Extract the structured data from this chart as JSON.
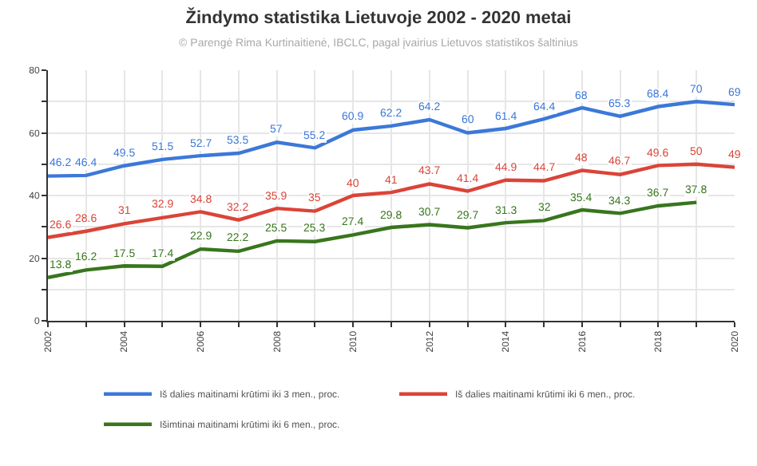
{
  "chart_data": {
    "type": "line",
    "title": "Žindymo statistika Lietuvoje 2002 - 2020 metai",
    "subtitle": "© Parengė Rima Kurtinaitienė, IBCLC, pagal įvairius Lietuvos statistikos šaltinius",
    "x": [
      2002,
      2003,
      2004,
      2005,
      2006,
      2007,
      2008,
      2009,
      2010,
      2011,
      2012,
      2013,
      2014,
      2015,
      2016,
      2017,
      2018,
      2019,
      2020
    ],
    "series": [
      {
        "name": "Iš dalies maitinami krūtimi iki 3 men., proc.",
        "color": "#3c78d8",
        "values": [
          46.2,
          46.4,
          49.5,
          51.5,
          52.7,
          53.5,
          57,
          55.2,
          60.9,
          62.2,
          64.2,
          60,
          61.4,
          64.4,
          68,
          65.3,
          68.4,
          70,
          69
        ]
      },
      {
        "name": "Iš dalies maitinami krūtimi iki 6 men., proc.",
        "color": "#db4437",
        "values": [
          26.6,
          28.6,
          31,
          32.9,
          34.8,
          32.2,
          35.9,
          35,
          40,
          41,
          43.7,
          41.4,
          44.9,
          44.7,
          48,
          46.7,
          49.6,
          50,
          49
        ]
      },
      {
        "name": "Išimtinai maitinami krūtimi iki 6 men., proc.",
        "color": "#38761d",
        "values": [
          13.8,
          16.2,
          17.5,
          17.4,
          22.9,
          22.2,
          25.5,
          25.3,
          27.4,
          29.8,
          30.7,
          29.7,
          31.3,
          32,
          35.4,
          34.3,
          36.7,
          37.8,
          null
        ]
      }
    ],
    "xlim": [
      2002,
      2020
    ],
    "xticks": [
      2002,
      {
        "value": 2003,
        "label": null
      },
      2004,
      {
        "value": 2005,
        "label": null
      },
      2006,
      {
        "value": 2007,
        "label": null
      },
      2008,
      {
        "value": 2009,
        "label": null
      },
      2010,
      {
        "value": 2011,
        "label": null
      },
      2012,
      {
        "value": 2013,
        "label": null
      },
      2014,
      {
        "value": 2015,
        "label": null
      },
      2016,
      {
        "value": 2017,
        "label": null
      },
      2018,
      {
        "value": 2019,
        "label": null
      },
      2020
    ],
    "ylim": [
      0,
      80
    ],
    "yticks": [
      0,
      {
        "value": 10,
        "label": null
      },
      20,
      {
        "value": 30,
        "label": null
      },
      40,
      {
        "value": 50,
        "label": null
      },
      60,
      {
        "value": 70,
        "label": null
      },
      80
    ],
    "grid": true,
    "legend": "bottom",
    "data_labels": true,
    "marker": "none",
    "line_style": "solid"
  }
}
